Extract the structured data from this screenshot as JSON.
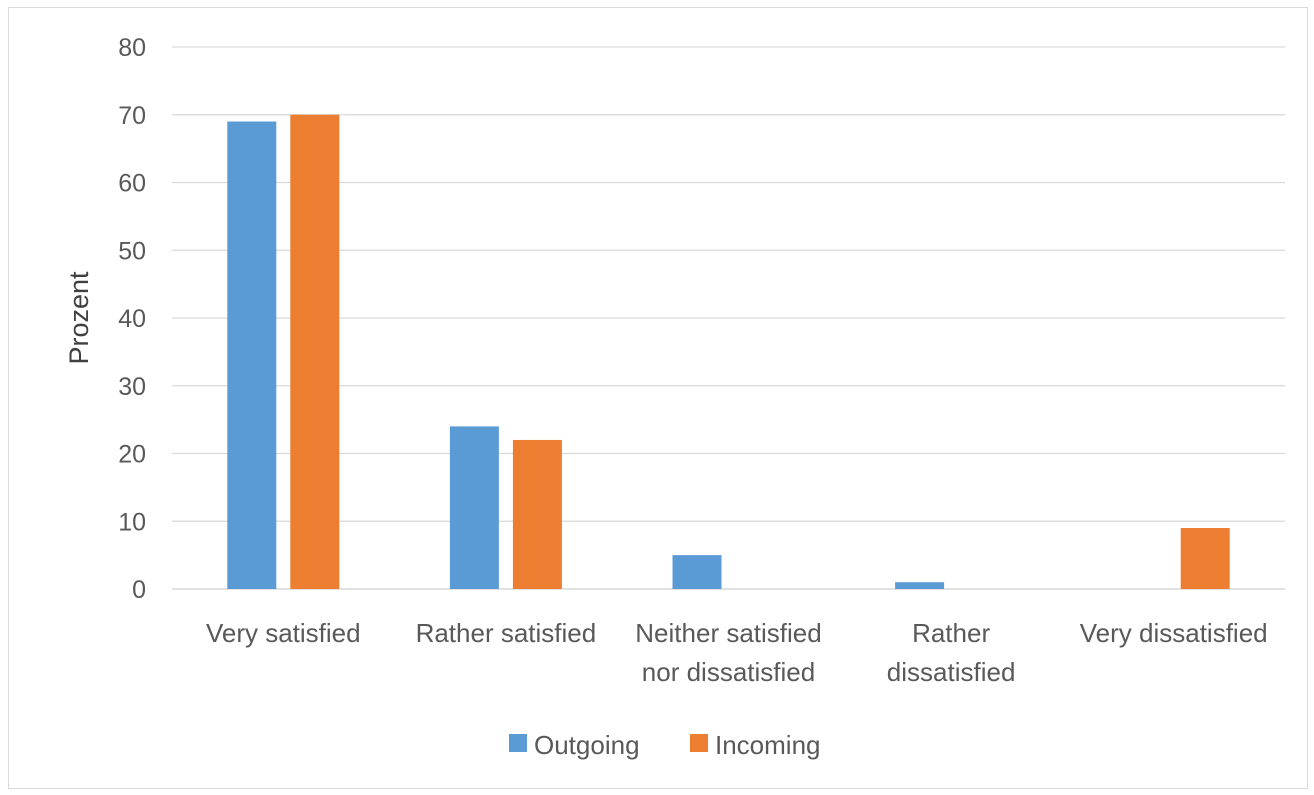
{
  "chart_data": {
    "type": "bar",
    "title": "",
    "xlabel": "",
    "ylabel": "Prozent",
    "ylim": [
      0,
      80
    ],
    "ytick_step": 10,
    "grid": true,
    "legend_position": "bottom",
    "categories": [
      [
        "Very satisfied"
      ],
      [
        "Rather satisfied"
      ],
      [
        "Neither satisfied",
        "nor dissatisfied"
      ],
      [
        "Rather",
        "dissatisfied"
      ],
      [
        "Very dissatisfied"
      ]
    ],
    "series": [
      {
        "name": "Outgoing",
        "color": "#5b9bd5",
        "values": [
          69,
          24,
          5,
          1,
          0
        ]
      },
      {
        "name": "Incoming",
        "color": "#ed7d31",
        "values": [
          70,
          22,
          0,
          0,
          9
        ]
      }
    ]
  }
}
